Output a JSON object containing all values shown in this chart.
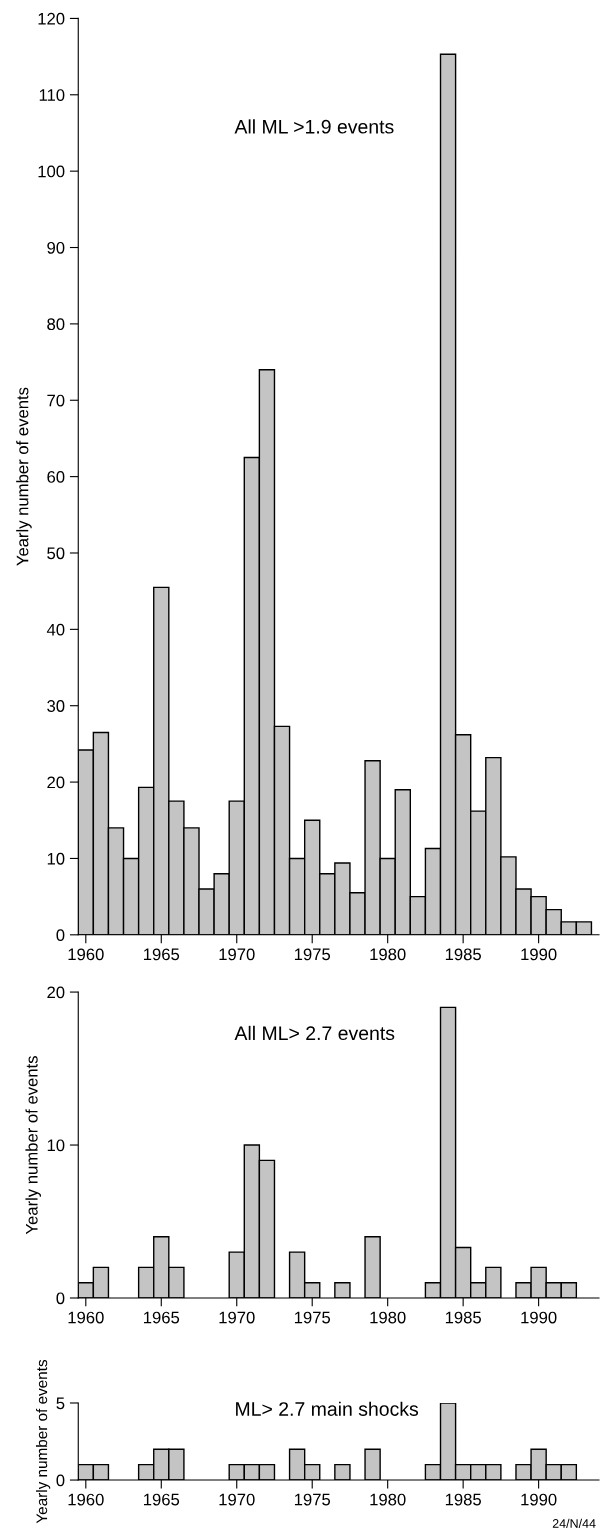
{
  "chart_data": [
    {
      "type": "histogram",
      "title": "All ML >1.9 events",
      "ylabel": "Yearly number of events",
      "color": "#c4c4c4",
      "bins": [
        1959.5,
        1960.5,
        1961.5,
        1962.5,
        1963.5,
        1964.5,
        1965.5,
        1966.5,
        1967.5,
        1968.5,
        1969.5,
        1970.5,
        1971.5,
        1972.5,
        1973.5,
        1974.5,
        1975.5,
        1976.5,
        1977.5,
        1978.5,
        1979.5,
        1980.5,
        1981.5,
        1982.5,
        1983.5,
        1984.5,
        1985.5,
        1986.5,
        1987.5,
        1988.5,
        1989.5,
        1990.5,
        1991.5,
        1992.5,
        1993.5
      ],
      "values": [
        24.2,
        26.5,
        14,
        10,
        19.3,
        45.5,
        17.5,
        14,
        6,
        8,
        17.5,
        62.5,
        74,
        27.3,
        10,
        15,
        8,
        9.4,
        5.5,
        22.8,
        10,
        19,
        5,
        11.3,
        115.3,
        26.2,
        16.2,
        23.2,
        10.2,
        6,
        5,
        3.3,
        1.7,
        1.7
      ],
      "xlim": [
        1959.5,
        1994
      ],
      "xticks": [
        1960,
        1965,
        1970,
        1975,
        1980,
        1985,
        1990
      ],
      "ylim": [
        0,
        120
      ],
      "yticks": [
        0,
        10,
        20,
        30,
        40,
        50,
        60,
        70,
        80,
        90,
        100,
        110,
        120
      ],
      "grid": false
    },
    {
      "type": "histogram",
      "title": "All ML> 2.7 events",
      "ylabel": "Yearly number of events",
      "color": "#c4c4c4",
      "bins": [
        1959.5,
        1960.5,
        1961.5,
        1962.5,
        1963.5,
        1964.5,
        1965.5,
        1966.5,
        1967.5,
        1968.5,
        1969.5,
        1970.5,
        1971.5,
        1972.5,
        1973.5,
        1974.5,
        1975.5,
        1976.5,
        1977.5,
        1978.5,
        1979.5,
        1980.5,
        1981.5,
        1982.5,
        1983.5,
        1984.5,
        1985.5,
        1986.5,
        1987.5,
        1988.5,
        1989.5,
        1990.5,
        1991.5,
        1992.5
      ],
      "values": [
        1,
        2,
        0,
        0,
        2,
        4,
        2,
        0,
        0,
        0,
        3,
        10,
        9,
        0,
        3,
        1,
        0,
        1,
        0,
        4,
        0,
        0,
        0,
        1,
        19,
        3.3,
        1,
        2,
        0,
        1,
        2,
        1,
        1
      ],
      "xlim": [
        1959.5,
        1994
      ],
      "xticks": [
        1960,
        1965,
        1970,
        1975,
        1980,
        1985,
        1990
      ],
      "ylim": [
        0,
        20
      ],
      "yticks": [
        0,
        10,
        20
      ],
      "grid": false
    },
    {
      "type": "histogram",
      "title": "ML> 2.7 main shocks",
      "ylabel": "Yearly number of events",
      "color": "#c4c4c4",
      "bins": [
        1959.5,
        1960.5,
        1961.5,
        1962.5,
        1963.5,
        1964.5,
        1965.5,
        1966.5,
        1967.5,
        1968.5,
        1969.5,
        1970.5,
        1971.5,
        1972.5,
        1973.5,
        1974.5,
        1975.5,
        1976.5,
        1977.5,
        1978.5,
        1979.5,
        1980.5,
        1981.5,
        1982.5,
        1983.5,
        1984.5,
        1985.5,
        1986.5,
        1987.5,
        1988.5,
        1989.5,
        1990.5,
        1991.5,
        1992.5
      ],
      "values": [
        1,
        1,
        0,
        0,
        1,
        2,
        2,
        0,
        0,
        0,
        1,
        1,
        1,
        0,
        2,
        1,
        0,
        1,
        0,
        2,
        0,
        0,
        0,
        1,
        5,
        1,
        1,
        1,
        0,
        1,
        2,
        1,
        1
      ],
      "xlim": [
        1959.5,
        1994
      ],
      "xticks": [
        1960,
        1965,
        1970,
        1975,
        1980,
        1985,
        1990
      ],
      "ylim": [
        0,
        5
      ],
      "yticks": [
        0,
        5
      ],
      "grid": false,
      "annotations": [
        "24/N/44"
      ]
    }
  ]
}
